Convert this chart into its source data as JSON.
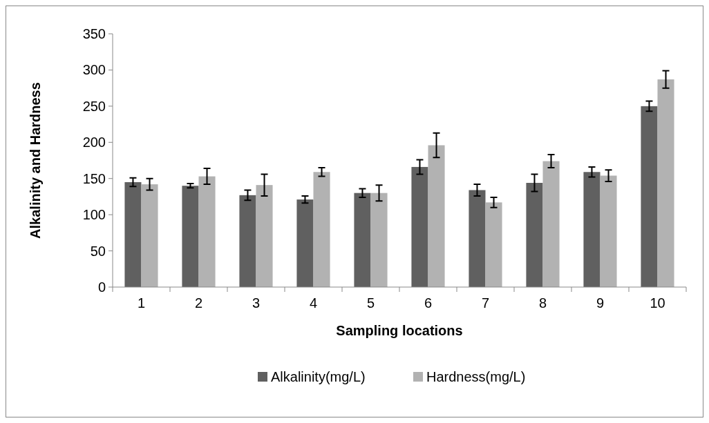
{
  "chart_data": {
    "type": "bar",
    "xlabel": "Sampling locations",
    "ylabel": "Alkalinity and Hardness",
    "categories": [
      "1",
      "2",
      "3",
      "4",
      "5",
      "6",
      "7",
      "8",
      "9",
      "10"
    ],
    "series": [
      {
        "name": "Alkalinity(mg/L)",
        "color": "#606060",
        "values": [
          145,
          140,
          127,
          121,
          130,
          166,
          134,
          144,
          159,
          250
        ],
        "errors": [
          6,
          3,
          7,
          5,
          6,
          10,
          8,
          12,
          7,
          7
        ]
      },
      {
        "name": "Hardness(mg/L)",
        "color": "#b2b2b2",
        "values": [
          142,
          153,
          141,
          159,
          130,
          196,
          117,
          174,
          154,
          287
        ],
        "errors": [
          8,
          11,
          15,
          6,
          11,
          17,
          7,
          9,
          8,
          12
        ]
      }
    ],
    "ylim": [
      0,
      350
    ],
    "yticks": [
      0,
      50,
      100,
      150,
      200,
      250,
      300,
      350
    ],
    "grid": false,
    "legend": "bottom"
  }
}
